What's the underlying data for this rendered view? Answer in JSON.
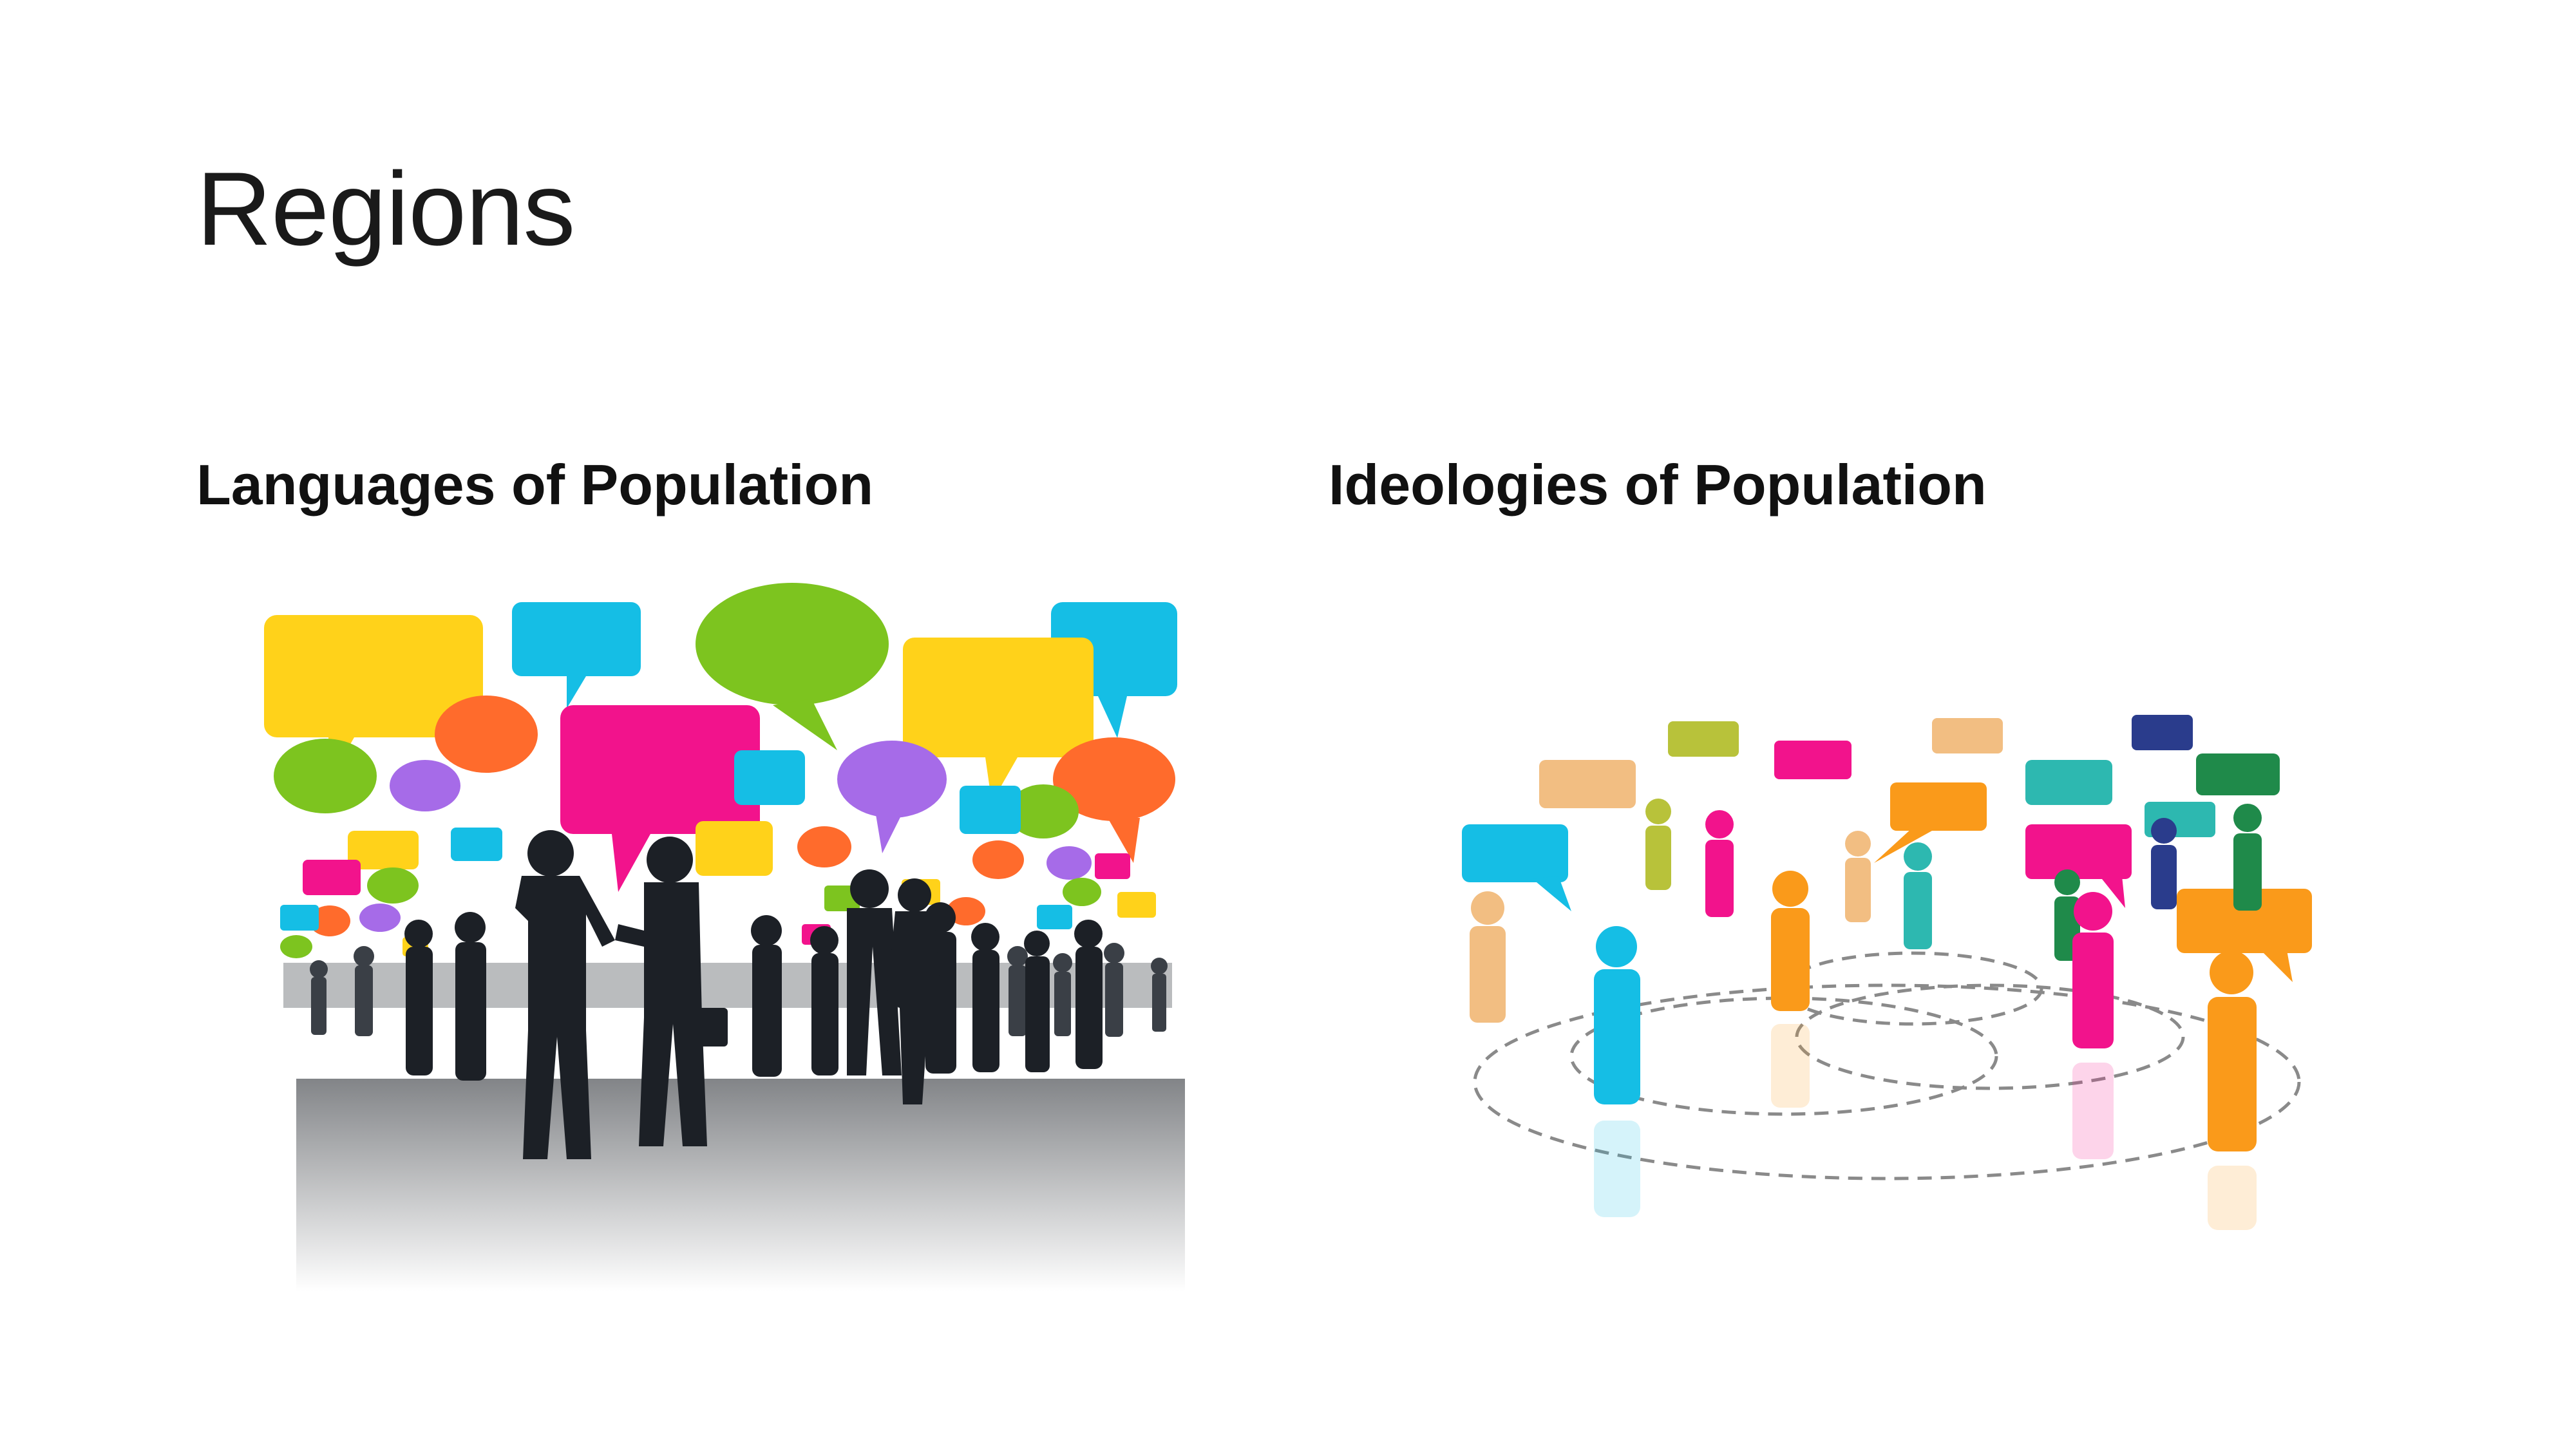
{
  "slide": {
    "title": "Regions",
    "left_heading": "Languages of Population",
    "right_heading": "Ideologies of Population"
  },
  "colors": {
    "yellow": "#FFD21A",
    "cyan": "#15BEE5",
    "green": "#7DC41F",
    "magenta": "#F2138C",
    "purple": "#A66BE8",
    "orange": "#FF6B2C",
    "amber": "#FA9A1A",
    "teal": "#2DB8B0",
    "navy": "#2A3C8C",
    "dark_green": "#1F8A4A",
    "silhouette": "#1c2026"
  },
  "images": [
    {
      "name": "people-talking-speech-bubbles",
      "kind": "illustration"
    },
    {
      "name": "connected-people-figures-network",
      "kind": "illustration"
    }
  ]
}
